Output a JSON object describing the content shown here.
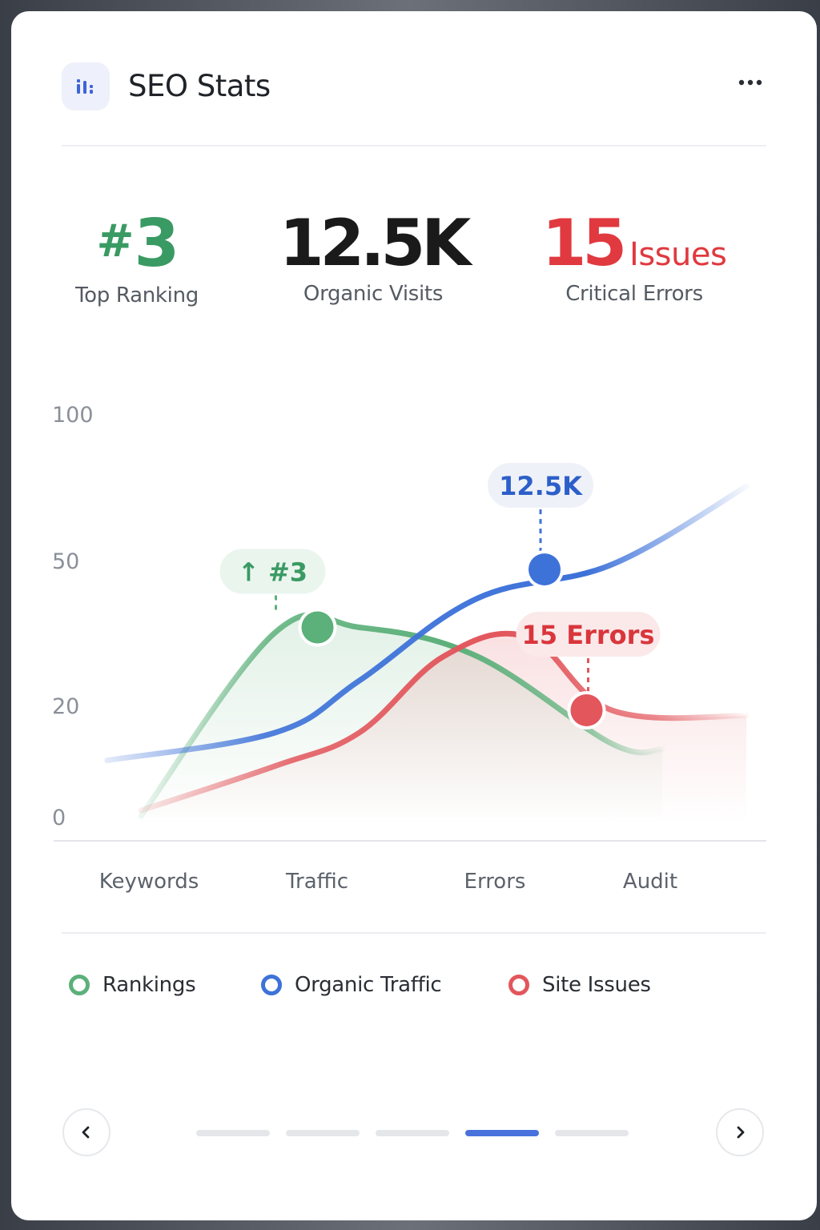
{
  "header": {
    "title": "SEO Stats",
    "logo_icon": "bar-chart-icon",
    "menu_icon": "more-horizontal-icon"
  },
  "stats": [
    {
      "prefix": "#",
      "value": "3",
      "label": "Top Ranking",
      "color": "#3a9a63"
    },
    {
      "value": "12.5K",
      "label": "Organic Visits",
      "color": "#1a1a1a"
    },
    {
      "value": "15",
      "suffix": "Issues",
      "label": "Critical Errors",
      "color": "#e0393f"
    }
  ],
  "chart_data": {
    "type": "line",
    "categories": [
      "Keywords",
      "Traffic",
      "Errors",
      "Audit"
    ],
    "y_ticks": [
      "100",
      "50",
      "20",
      "0"
    ],
    "series": [
      {
        "name": "Rankings",
        "color": "#5cb07a",
        "x": [
          0.2,
          1.0,
          1.5,
          2.2,
          3.0,
          3.3
        ],
        "values": [
          0,
          35,
          36,
          30,
          13,
          12
        ]
      },
      {
        "name": "Organic Traffic",
        "color": "#3d72d9",
        "x": [
          0.0,
          1.0,
          1.5,
          2.2,
          3.0,
          3.8
        ],
        "values": [
          10,
          15,
          25,
          42,
          49,
          75
        ]
      },
      {
        "name": "Site Issues",
        "color": "#e2565c",
        "x": [
          0.2,
          1.0,
          1.5,
          2.0,
          2.5,
          3.0,
          3.8
        ],
        "values": [
          1,
          9,
          15,
          30,
          34,
          19,
          18
        ]
      }
    ],
    "annotations": [
      {
        "series": "Rankings",
        "text": "#3",
        "arrow": "↑",
        "x": 1.25,
        "y": 36
      },
      {
        "series": "Organic Traffic",
        "text": "12.5K",
        "x": 2.6,
        "y": 48
      },
      {
        "series": "Site Issues",
        "text": "15 Errors",
        "x": 2.85,
        "y": 19
      }
    ]
  },
  "legend": [
    {
      "label": "Rankings",
      "color": "#5cb07a"
    },
    {
      "label": "Organic Traffic",
      "color": "#3d72d9"
    },
    {
      "label": "Site Issues",
      "color": "#e2565c"
    }
  ],
  "pagination": {
    "pages": 5,
    "active": 4,
    "prev_icon": "chevron-left-icon",
    "next_icon": "chevron-right-icon"
  }
}
